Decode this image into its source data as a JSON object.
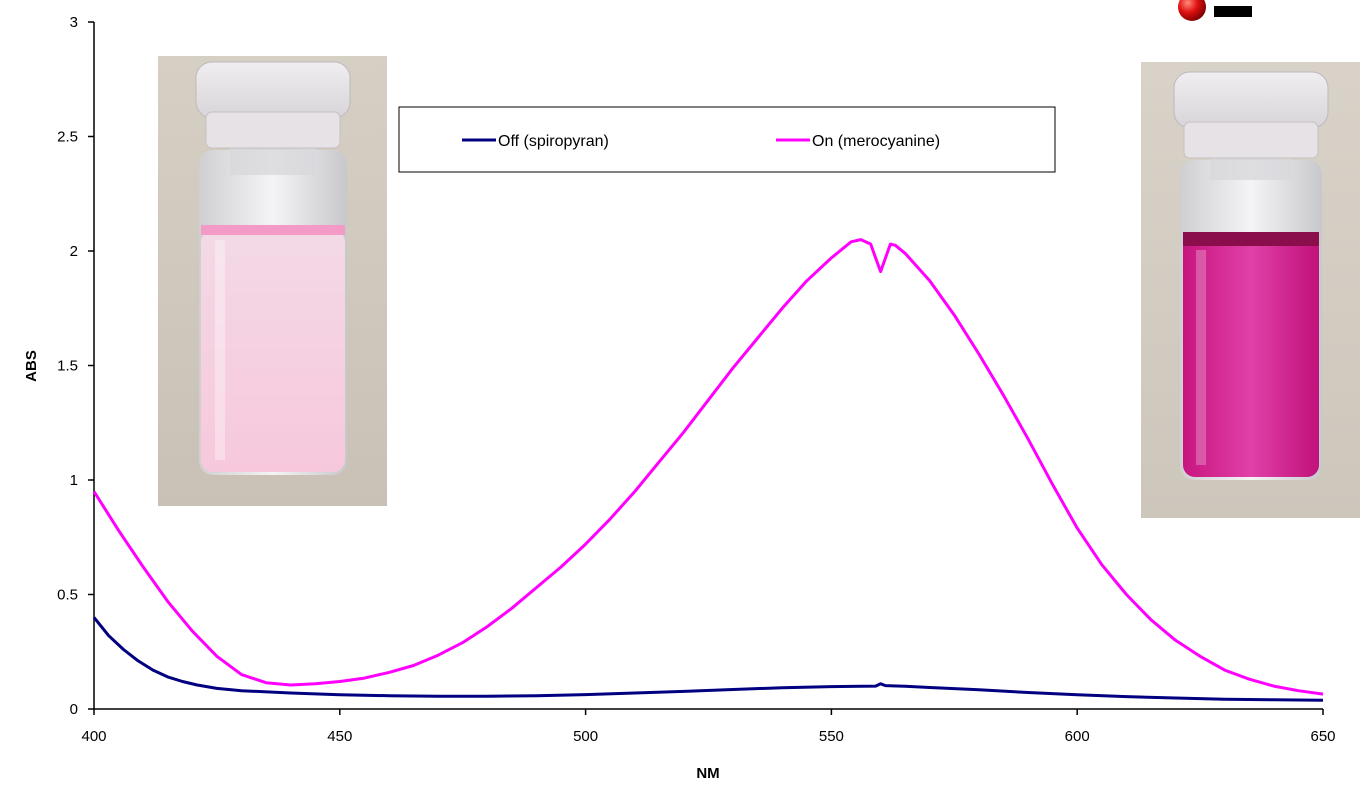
{
  "chart_data": {
    "type": "line",
    "xlabel": "NM",
    "ylabel": "ABS",
    "xlim": [
      400,
      650
    ],
    "ylim": [
      0,
      3
    ],
    "x_ticks": [
      400,
      450,
      500,
      550,
      600,
      650
    ],
    "y_ticks": [
      0,
      0.5,
      1,
      1.5,
      2,
      2.5,
      3
    ],
    "grid": false,
    "legend_position": "top-center",
    "series": [
      {
        "name": "Off (spiropyran)",
        "color": "#000080",
        "points": [
          [
            400,
            0.4
          ],
          [
            403,
            0.32
          ],
          [
            406,
            0.26
          ],
          [
            409,
            0.21
          ],
          [
            412,
            0.17
          ],
          [
            415,
            0.14
          ],
          [
            418,
            0.12
          ],
          [
            421,
            0.105
          ],
          [
            425,
            0.09
          ],
          [
            430,
            0.08
          ],
          [
            440,
            0.07
          ],
          [
            450,
            0.062
          ],
          [
            460,
            0.058
          ],
          [
            470,
            0.056
          ],
          [
            480,
            0.056
          ],
          [
            490,
            0.058
          ],
          [
            500,
            0.063
          ],
          [
            510,
            0.07
          ],
          [
            520,
            0.077
          ],
          [
            530,
            0.085
          ],
          [
            540,
            0.093
          ],
          [
            550,
            0.098
          ],
          [
            556,
            0.099
          ],
          [
            559,
            0.1
          ],
          [
            560,
            0.11
          ],
          [
            561,
            0.102
          ],
          [
            565,
            0.099
          ],
          [
            570,
            0.094
          ],
          [
            580,
            0.084
          ],
          [
            590,
            0.072
          ],
          [
            600,
            0.062
          ],
          [
            610,
            0.054
          ],
          [
            620,
            0.048
          ],
          [
            630,
            0.043
          ],
          [
            640,
            0.04
          ],
          [
            650,
            0.038
          ]
        ]
      },
      {
        "name": "On (merocyanine)",
        "color": "#ff00ff",
        "points": [
          [
            400,
            0.95
          ],
          [
            405,
            0.78
          ],
          [
            410,
            0.62
          ],
          [
            415,
            0.47
          ],
          [
            420,
            0.34
          ],
          [
            425,
            0.23
          ],
          [
            430,
            0.15
          ],
          [
            435,
            0.115
          ],
          [
            440,
            0.105
          ],
          [
            445,
            0.11
          ],
          [
            450,
            0.12
          ],
          [
            455,
            0.135
          ],
          [
            460,
            0.16
          ],
          [
            465,
            0.19
          ],
          [
            470,
            0.235
          ],
          [
            475,
            0.29
          ],
          [
            480,
            0.36
          ],
          [
            485,
            0.44
          ],
          [
            490,
            0.53
          ],
          [
            495,
            0.62
          ],
          [
            500,
            0.72
          ],
          [
            505,
            0.83
          ],
          [
            510,
            0.95
          ],
          [
            515,
            1.08
          ],
          [
            520,
            1.21
          ],
          [
            525,
            1.35
          ],
          [
            530,
            1.49
          ],
          [
            535,
            1.62
          ],
          [
            540,
            1.75
          ],
          [
            545,
            1.87
          ],
          [
            550,
            1.97
          ],
          [
            554,
            2.04
          ],
          [
            556,
            2.05
          ],
          [
            558,
            2.03
          ],
          [
            559,
            1.97
          ],
          [
            560,
            1.91
          ],
          [
            561,
            1.97
          ],
          [
            562,
            2.03
          ],
          [
            563,
            2.025
          ],
          [
            565,
            1.99
          ],
          [
            570,
            1.87
          ],
          [
            575,
            1.72
          ],
          [
            580,
            1.55
          ],
          [
            585,
            1.37
          ],
          [
            590,
            1.18
          ],
          [
            595,
            0.98
          ],
          [
            600,
            0.79
          ],
          [
            605,
            0.63
          ],
          [
            610,
            0.5
          ],
          [
            615,
            0.39
          ],
          [
            620,
            0.3
          ],
          [
            625,
            0.23
          ],
          [
            630,
            0.17
          ],
          [
            635,
            0.13
          ],
          [
            640,
            0.1
          ],
          [
            645,
            0.08
          ],
          [
            650,
            0.065
          ]
        ]
      }
    ],
    "annotations": []
  },
  "images": {
    "left_vial": "vial-photo-spiropyran-light-pink",
    "right_vial": "vial-photo-merocyanine-magenta",
    "corner_icon": "red-sphere-icon"
  }
}
